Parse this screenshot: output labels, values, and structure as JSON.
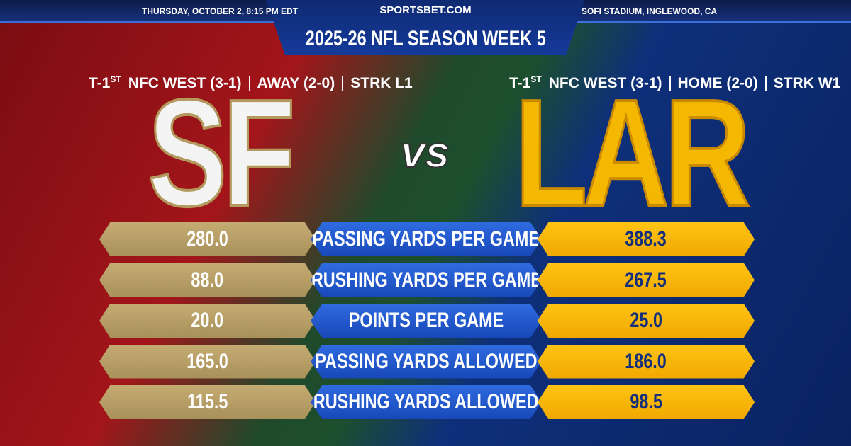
{
  "header": {
    "date": "THURSDAY, OCTOBER 2, 8:15 PM EDT",
    "brand": "SPORTSBET.COM",
    "venue": "SOFI STADIUM, INGLEWOOD, CA",
    "title": "2025-26 NFL SEASON WEEK 5"
  },
  "away": {
    "team": "SF",
    "rank": "T-1",
    "rank_suffix": "ST",
    "record_items": [
      "NFC WEST (3-1)",
      "AWAY (2-0)",
      "STRK L1"
    ]
  },
  "home": {
    "team": "LAR",
    "rank": "T-1",
    "rank_suffix": "ST",
    "record_items": [
      "NFC WEST (3-1)",
      "HOME (2-0)",
      "STRK W1"
    ]
  },
  "versus": "vs",
  "stats": [
    {
      "label": "PASSING YARDS PER GAME",
      "away": "280.0",
      "home": "388.3"
    },
    {
      "label": "RUSHING YARDS PER GAME",
      "away": "88.0",
      "home": "267.5"
    },
    {
      "label": "POINTS PER GAME",
      "away": "20.0",
      "home": "25.0"
    },
    {
      "label": "PASSING YARDS ALLOWED",
      "away": "165.0",
      "home": "186.0"
    },
    {
      "label": "RUSHING YARDS ALLOWED",
      "away": "115.5",
      "home": "98.5"
    }
  ]
}
